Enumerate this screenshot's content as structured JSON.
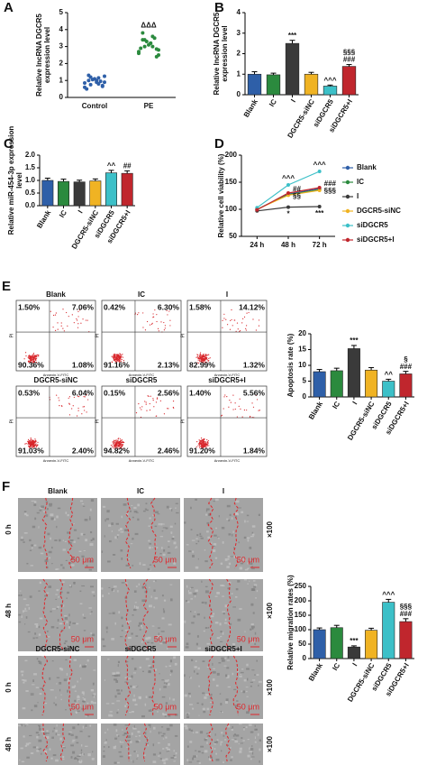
{
  "panel_labels": [
    "A",
    "B",
    "C",
    "D",
    "E",
    "F"
  ],
  "chart_data": [
    {
      "type": "dot",
      "ylabel": [
        "Relative lncRNA DGCR5",
        "expression level"
      ],
      "categories": [
        "Control",
        "PE"
      ],
      "colors": [
        "#2e5fa8",
        "#2b8a3e"
      ],
      "values": [
        [
          0.6,
          0.8,
          1.2,
          0.9,
          1.0,
          1.3,
          0.7,
          1.1,
          0.5,
          0.95,
          1.05,
          0.85,
          1.15,
          0.75,
          1.25,
          0.9,
          1.0,
          0.65
        ],
        [
          2.6,
          3.0,
          3.4,
          2.8,
          3.2,
          3.8,
          2.4,
          3.1,
          2.9,
          3.5,
          3.3,
          2.7,
          3.6,
          3.0,
          2.5,
          3.2,
          3.4,
          2.85
        ]
      ],
      "ylim": [
        0,
        5
      ],
      "yticks": [
        0,
        1,
        2,
        3,
        4,
        5
      ],
      "annotations": [
        null,
        "ΔΔΔ"
      ]
    },
    {
      "type": "bar",
      "ylabel": [
        "Relative lncRNA DGCR5",
        "expression level"
      ],
      "categories": [
        "Blank",
        "IC",
        "I",
        "DGCR5-siNC",
        "siDGCR5",
        "siDGCR5+I"
      ],
      "colors": [
        "#2e5fa8",
        "#2b8a3e",
        "#3a3a3a",
        "#f0b323",
        "#3cc0c8",
        "#c0262d"
      ],
      "values": [
        1.0,
        0.97,
        2.5,
        1.0,
        0.42,
        1.38
      ],
      "errors": [
        0.12,
        0.08,
        0.15,
        0.09,
        0.05,
        0.09
      ],
      "ylim": [
        0,
        4
      ],
      "yticks": [
        0,
        1,
        2,
        3,
        4
      ],
      "annotations": [
        null,
        null,
        [
          "***"
        ],
        null,
        [
          "^^^"
        ],
        [
          "§§§",
          "###"
        ]
      ]
    },
    {
      "type": "bar",
      "ylabel": [
        "Relative miR-454-3p expression",
        "level"
      ],
      "categories": [
        "Blank",
        "IC",
        "I",
        "DGCR5-siNC",
        "siDGCR5",
        "siDGCR5+I"
      ],
      "colors": [
        "#2e5fa8",
        "#2b8a3e",
        "#3a3a3a",
        "#f0b323",
        "#3cc0c8",
        "#c0262d"
      ],
      "values": [
        1.0,
        0.96,
        0.94,
        0.98,
        1.3,
        1.28
      ],
      "errors": [
        0.09,
        0.09,
        0.07,
        0.08,
        0.1,
        0.1
      ],
      "ylim": [
        0,
        2
      ],
      "yticks": [
        {
          "value": 0,
          "label": "0.0"
        },
        {
          "value": 0.5,
          "label": "0.5"
        },
        {
          "value": 1,
          "label": "1.0"
        },
        {
          "value": 1.5,
          "label": "1.5"
        },
        {
          "value": 2,
          "label": "2.0"
        }
      ],
      "annotations": [
        null,
        null,
        null,
        null,
        [
          "^^"
        ],
        [
          "##"
        ]
      ]
    },
    {
      "type": "line",
      "ylabel": [
        "Relative cell viability (%)"
      ],
      "categories": [
        "24 h",
        "48 h",
        "72 h"
      ],
      "ylim": [
        50,
        200
      ],
      "yticks": [
        50,
        100,
        150,
        200
      ],
      "series": [
        {
          "name": "Blank",
          "color": "#2e5fa8",
          "values": [
            100,
            128,
            138
          ]
        },
        {
          "name": "IC",
          "color": "#2b8a3e",
          "values": [
            100,
            127,
            136
          ]
        },
        {
          "name": "I",
          "color": "#3a3a3a",
          "values": [
            97,
            104,
            105
          ],
          "annotations": [
            null,
            [
              "*"
            ],
            [
              "***"
            ]
          ]
        },
        {
          "name": "DGCR5-siNC",
          "color": "#f0b323",
          "values": [
            100,
            126,
            135
          ]
        },
        {
          "name": "siDGCR5",
          "color": "#3cc0c8",
          "values": [
            103,
            145,
            170
          ],
          "annotations": [
            null,
            [
              "^^^"
            ],
            [
              "^^^"
            ]
          ]
        },
        {
          "name": "siDGCR5+I",
          "color": "#c0262d",
          "values": [
            99,
            130,
            140
          ],
          "annotations": [
            null,
            [
              "##",
              "§§"
            ],
            [
              "###",
              "§§§"
            ]
          ]
        }
      ]
    },
    {
      "type": "bar",
      "ylabel": [
        "Apoptosis rate (%)"
      ],
      "categories": [
        "Blank",
        "IC",
        "I",
        "DGCR5-siNC",
        "siDGCR5",
        "siDGCR5+I"
      ],
      "colors": [
        "#2e5fa8",
        "#2b8a3e",
        "#3a3a3a",
        "#f0b323",
        "#3cc0c8",
        "#c0262d"
      ],
      "values": [
        8,
        8.3,
        15.3,
        8.5,
        5,
        7.3
      ],
      "errors": [
        0.7,
        0.8,
        1.0,
        0.8,
        0.6,
        0.8
      ],
      "ylim": [
        0,
        20
      ],
      "yticks": [
        0,
        5,
        10,
        15,
        20
      ],
      "annotations": [
        null,
        null,
        [
          "***"
        ],
        null,
        [
          "^^"
        ],
        [
          "§",
          "###"
        ]
      ]
    },
    {
      "type": "bar",
      "ylabel": [
        "Relative migration rates (%)"
      ],
      "categories": [
        "Blank",
        "IC",
        "I",
        "DGCR5-siNC",
        "siDGCR5",
        "siDGCR5+I"
      ],
      "colors": [
        "#2e5fa8",
        "#2b8a3e",
        "#3a3a3a",
        "#f0b323",
        "#3cc0c8",
        "#c0262d"
      ],
      "values": [
        100,
        107,
        40,
        98,
        195,
        128
      ],
      "errors": [
        6,
        8,
        4,
        7,
        10,
        10
      ],
      "ylim": [
        0,
        250
      ],
      "yticks": [
        0,
        50,
        100,
        150,
        200,
        250
      ],
      "annotations": [
        null,
        null,
        [
          "***"
        ],
        null,
        [
          "^^^"
        ],
        [
          "§§§",
          "###"
        ]
      ]
    }
  ],
  "flow": {
    "x_label": "Annexin-V-FITC",
    "y_label": "PI",
    "plots": [
      {
        "title": "Blank",
        "quadrants": [
          "1.50%",
          "7.06%",
          "90.36%",
          "1.08%"
        ]
      },
      {
        "title": "IC",
        "quadrants": [
          "0.42%",
          "6.30%",
          "91.16%",
          "2.13%"
        ]
      },
      {
        "title": "I",
        "quadrants": [
          "1.58%",
          "14.12%",
          "82.99%",
          "1.32%"
        ]
      },
      {
        "title": "DGCR5-siNC",
        "quadrants": [
          "0.53%",
          "6.04%",
          "91.03%",
          "2.40%"
        ]
      },
      {
        "title": "siDGCR5",
        "quadrants": [
          "0.15%",
          "2.56%",
          "94.82%",
          "2.46%"
        ]
      },
      {
        "title": "siDGCR5+I",
        "quadrants": [
          "1.40%",
          "5.56%",
          "91.20%",
          "1.84%"
        ]
      }
    ]
  },
  "wound": {
    "columns": [
      [
        "Blank",
        "IC",
        "I"
      ],
      [
        "DGCR5-siNC",
        "siDGCR5",
        "siDGCR5+I"
      ]
    ],
    "rows": [
      "0 h",
      "48 h"
    ],
    "scale": "50 μm",
    "magnification": "×100"
  }
}
